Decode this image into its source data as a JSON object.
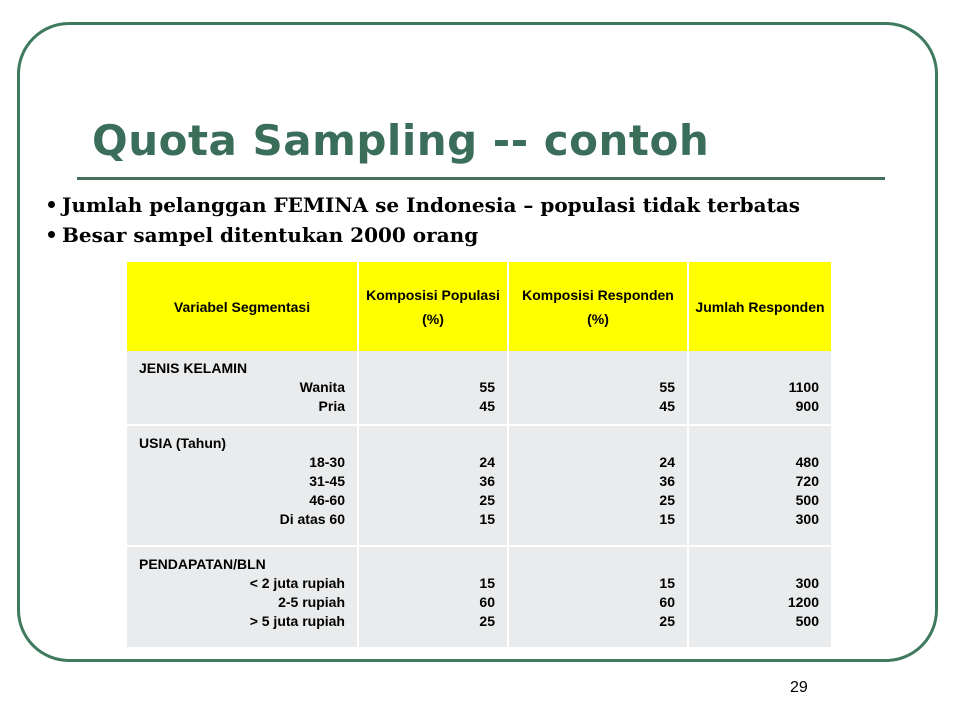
{
  "slide": {
    "title": "Quota Sampling -- contoh",
    "bullets": [
      "Jumlah pelanggan FEMINA se Indonesia – populasi tidak terbatas",
      "Besar sampel ditentukan 2000 orang"
    ],
    "page_number": "29"
  },
  "table": {
    "headers": {
      "variabel": "Variabel Segmentasi",
      "populasi": [
        "Komposisi",
        "Populasi (%)"
      ],
      "responden_pct": [
        "Komposisi",
        "Responden (%)"
      ],
      "jumlah": [
        "Jumlah",
        "Responden"
      ]
    },
    "groups": [
      {
        "name": "JENIS KELAMIN",
        "labels": [
          "Wanita",
          "Pria"
        ],
        "populasi": [
          "55",
          "45"
        ],
        "responden_pct": [
          "55",
          "45"
        ],
        "jumlah": [
          "1100",
          "900"
        ]
      },
      {
        "name": "USIA (Tahun)",
        "labels": [
          "18-30",
          "31-45",
          "46-60",
          "Di atas 60"
        ],
        "populasi": [
          "24",
          "36",
          "25",
          "15"
        ],
        "responden_pct": [
          "24",
          "36",
          "25",
          "15"
        ],
        "jumlah": [
          "480",
          "720",
          "500",
          "300"
        ]
      },
      {
        "name": "PENDAPATAN/BLN",
        "labels": [
          "< 2 juta rupiah",
          "2-5 rupiah",
          "> 5 juta rupiah"
        ],
        "populasi": [
          "15",
          "60",
          "25"
        ],
        "responden_pct": [
          "15",
          "60",
          "25"
        ],
        "jumlah": [
          "300",
          "1200",
          "500"
        ]
      }
    ]
  },
  "colors": {
    "title": "#3b6e5a",
    "frame": "#3f7a5f",
    "header_fill": "#ffff00",
    "cell_fill": "#e9ebec"
  }
}
